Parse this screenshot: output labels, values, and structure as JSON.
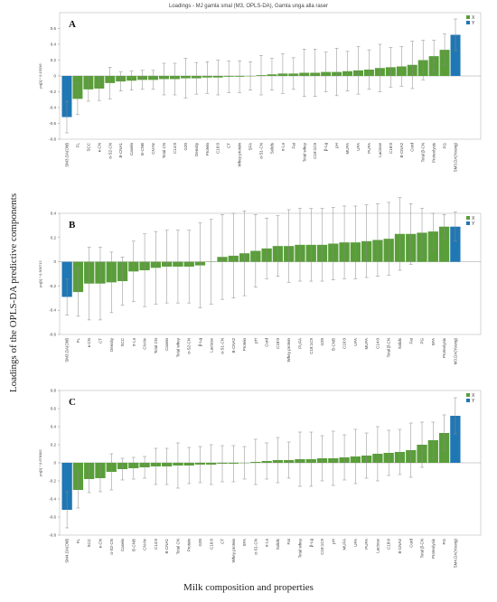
{
  "figure": {
    "title": "Loadings - MJ gamla smal (M3, OPLS-DA), Gamla unga alla raser",
    "y_label": "Loadings of the OPLS-DA predictive components",
    "x_label": "Milk composition and properties",
    "colors": {
      "x": "#5a9e3a",
      "y": "#1f77b4",
      "errorbar": "#8a8a8a"
    }
  },
  "chart_data": [
    {
      "type": "bar",
      "panel": "A",
      "ylabel": "pq[1] * 0.15536",
      "ylim": [
        -0.8,
        0.8
      ],
      "yticks": [
        -0.8,
        -0.6,
        -0.4,
        -0.2,
        0,
        0.2,
        0.4,
        0.6
      ],
      "legend": [
        "X",
        "Y"
      ],
      "categories": [
        "SM3.DA(Old)",
        "FL",
        "SCC",
        "κ-CN",
        "α-S2-CN",
        "B-CNA1",
        "Casein",
        "B-CNB",
        "CN-Nr",
        "Total CN",
        "C14:0",
        "G20",
        "Density",
        "Protein",
        "C16:0",
        "CT",
        "Whey protein",
        "SFA",
        "α-S1-CN",
        "Solids",
        "α-La",
        "Fat",
        "Total whey",
        "C18:1C9",
        "β-Lg",
        "pH",
        "MUFA",
        "UFA",
        "PUFA",
        "Lactose",
        "C18:0",
        "B-CNA2",
        "Curd",
        "Total β-CN",
        "Proteolysis",
        "PG",
        "SM3.DA(Young)"
      ],
      "values": [
        -0.52,
        -0.29,
        -0.17,
        -0.16,
        -0.09,
        -0.07,
        -0.06,
        -0.05,
        -0.05,
        -0.04,
        -0.04,
        -0.03,
        -0.03,
        -0.02,
        -0.02,
        -0.01,
        -0.01,
        0.0,
        0.01,
        0.02,
        0.03,
        0.03,
        0.04,
        0.04,
        0.05,
        0.05,
        0.06,
        0.07,
        0.08,
        0.1,
        0.11,
        0.12,
        0.14,
        0.2,
        0.25,
        0.33,
        0.52
      ],
      "errors": [
        0.2,
        0.2,
        0.15,
        0.15,
        0.2,
        0.12,
        0.12,
        0.12,
        0.12,
        0.2,
        0.2,
        0.25,
        0.2,
        0.2,
        0.22,
        0.2,
        0.2,
        0.18,
        0.25,
        0.2,
        0.25,
        0.2,
        0.3,
        0.3,
        0.25,
        0.3,
        0.25,
        0.3,
        0.25,
        0.3,
        0.25,
        0.25,
        0.3,
        0.25,
        0.2,
        0.2,
        0.2
      ],
      "series_types": [
        "Y",
        "X",
        "X",
        "X",
        "X",
        "X",
        "X",
        "X",
        "X",
        "X",
        "X",
        "X",
        "X",
        "X",
        "X",
        "X",
        "X",
        "X",
        "X",
        "X",
        "X",
        "X",
        "X",
        "X",
        "X",
        "X",
        "X",
        "X",
        "X",
        "X",
        "X",
        "X",
        "X",
        "X",
        "X",
        "X",
        "Y"
      ]
    },
    {
      "type": "bar",
      "panel": "B",
      "ylabel": "pq[1] * 0.309712",
      "ylim": [
        -0.6,
        0.4
      ],
      "yticks": [
        -0.6,
        -0.4,
        -0.2,
        0,
        0.2,
        0.4
      ],
      "legend": [
        "X",
        "Y"
      ],
      "categories": [
        "SM3.DA(Old)",
        "FL",
        "κ-CN",
        "CT",
        "Density",
        "SCC",
        "α-La",
        "CN-Nr",
        "Total CN",
        "Casein",
        "Total whey",
        "α-S2-CN",
        "β-Lg",
        "Lactose",
        "α-S1-CN",
        "B-CNA2",
        "Protein",
        "pH",
        "Curd",
        "C18:0",
        "Whey protein",
        "PUFA",
        "C18:1C9",
        "G20",
        "B-CNB",
        "C16:0",
        "UFA",
        "MUFA",
        "C14:0",
        "Total β-CN",
        "Solids",
        "Fat",
        "PG",
        "SFA",
        "Proteolysis",
        "M3.DA(Young)"
      ],
      "values": [
        -0.29,
        -0.25,
        -0.18,
        -0.18,
        -0.17,
        -0.16,
        -0.08,
        -0.07,
        -0.05,
        -0.04,
        -0.04,
        -0.04,
        -0.03,
        0.0,
        0.04,
        0.05,
        0.07,
        0.09,
        0.11,
        0.13,
        0.13,
        0.14,
        0.14,
        0.14,
        0.15,
        0.16,
        0.16,
        0.17,
        0.18,
        0.19,
        0.23,
        0.23,
        0.24,
        0.25,
        0.29,
        0.29
      ],
      "errors": [
        0.15,
        0.2,
        0.3,
        0.3,
        0.25,
        0.2,
        0.25,
        0.3,
        0.3,
        0.3,
        0.3,
        0.3,
        0.35,
        0.35,
        0.35,
        0.35,
        0.35,
        0.3,
        0.25,
        0.25,
        0.3,
        0.3,
        0.3,
        0.3,
        0.3,
        0.3,
        0.3,
        0.3,
        0.3,
        0.3,
        0.3,
        0.25,
        0.2,
        0.15,
        0.1,
        0.12
      ],
      "series_types": [
        "Y",
        "X",
        "X",
        "X",
        "X",
        "X",
        "X",
        "X",
        "X",
        "X",
        "X",
        "X",
        "X",
        "X",
        "X",
        "X",
        "X",
        "X",
        "X",
        "X",
        "X",
        "X",
        "X",
        "X",
        "X",
        "X",
        "X",
        "X",
        "X",
        "X",
        "X",
        "X",
        "X",
        "X",
        "X",
        "Y"
      ]
    },
    {
      "type": "bar",
      "panel": "C",
      "ylabel": "pq[1] * 0.678382",
      "ylim": [
        -0.8,
        0.8
      ],
      "yticks": [
        -0.8,
        -0.6,
        -0.4,
        -0.2,
        0,
        0.2,
        0.4,
        0.6,
        0.8
      ],
      "legend": [
        "X",
        "Y"
      ],
      "categories": [
        "SM4.DA(Old)",
        "FL",
        "SCC",
        "κ-CN",
        "α-S2-CN",
        "Casein",
        "B-CNB",
        "CN-Nr",
        "C14:0",
        "B-CNA1",
        "Total CN",
        "Protein",
        "G20",
        "C16:0",
        "CT",
        "Whey protein",
        "SFA",
        "α-S1-CN",
        "α-La",
        "Solids",
        "Fat",
        "Total whey",
        "β-Lg",
        "C18:1C9",
        "pH",
        "MUFA",
        "UFA",
        "PUFA",
        "Lactose",
        "C18:0",
        "B-CNA2",
        "Curd",
        "Total β-CN",
        "Proteolysis",
        "PG",
        "SM4.DA(Young)"
      ],
      "values": [
        -0.52,
        -0.3,
        -0.18,
        -0.17,
        -0.1,
        -0.07,
        -0.06,
        -0.05,
        -0.04,
        -0.04,
        -0.03,
        -0.03,
        -0.02,
        -0.02,
        -0.01,
        -0.01,
        0.0,
        0.01,
        0.02,
        0.03,
        0.03,
        0.04,
        0.04,
        0.05,
        0.05,
        0.06,
        0.07,
        0.08,
        0.1,
        0.11,
        0.12,
        0.14,
        0.2,
        0.25,
        0.33,
        0.52
      ],
      "errors": [
        0.2,
        0.2,
        0.15,
        0.15,
        0.2,
        0.12,
        0.12,
        0.12,
        0.2,
        0.2,
        0.25,
        0.2,
        0.2,
        0.22,
        0.2,
        0.2,
        0.18,
        0.25,
        0.2,
        0.25,
        0.2,
        0.3,
        0.3,
        0.25,
        0.3,
        0.25,
        0.3,
        0.25,
        0.3,
        0.25,
        0.25,
        0.3,
        0.25,
        0.2,
        0.2,
        0.2
      ],
      "series_types": [
        "Y",
        "X",
        "X",
        "X",
        "X",
        "X",
        "X",
        "X",
        "X",
        "X",
        "X",
        "X",
        "X",
        "X",
        "X",
        "X",
        "X",
        "X",
        "X",
        "X",
        "X",
        "X",
        "X",
        "X",
        "X",
        "X",
        "X",
        "X",
        "X",
        "X",
        "X",
        "X",
        "X",
        "X",
        "X",
        "Y"
      ]
    }
  ]
}
